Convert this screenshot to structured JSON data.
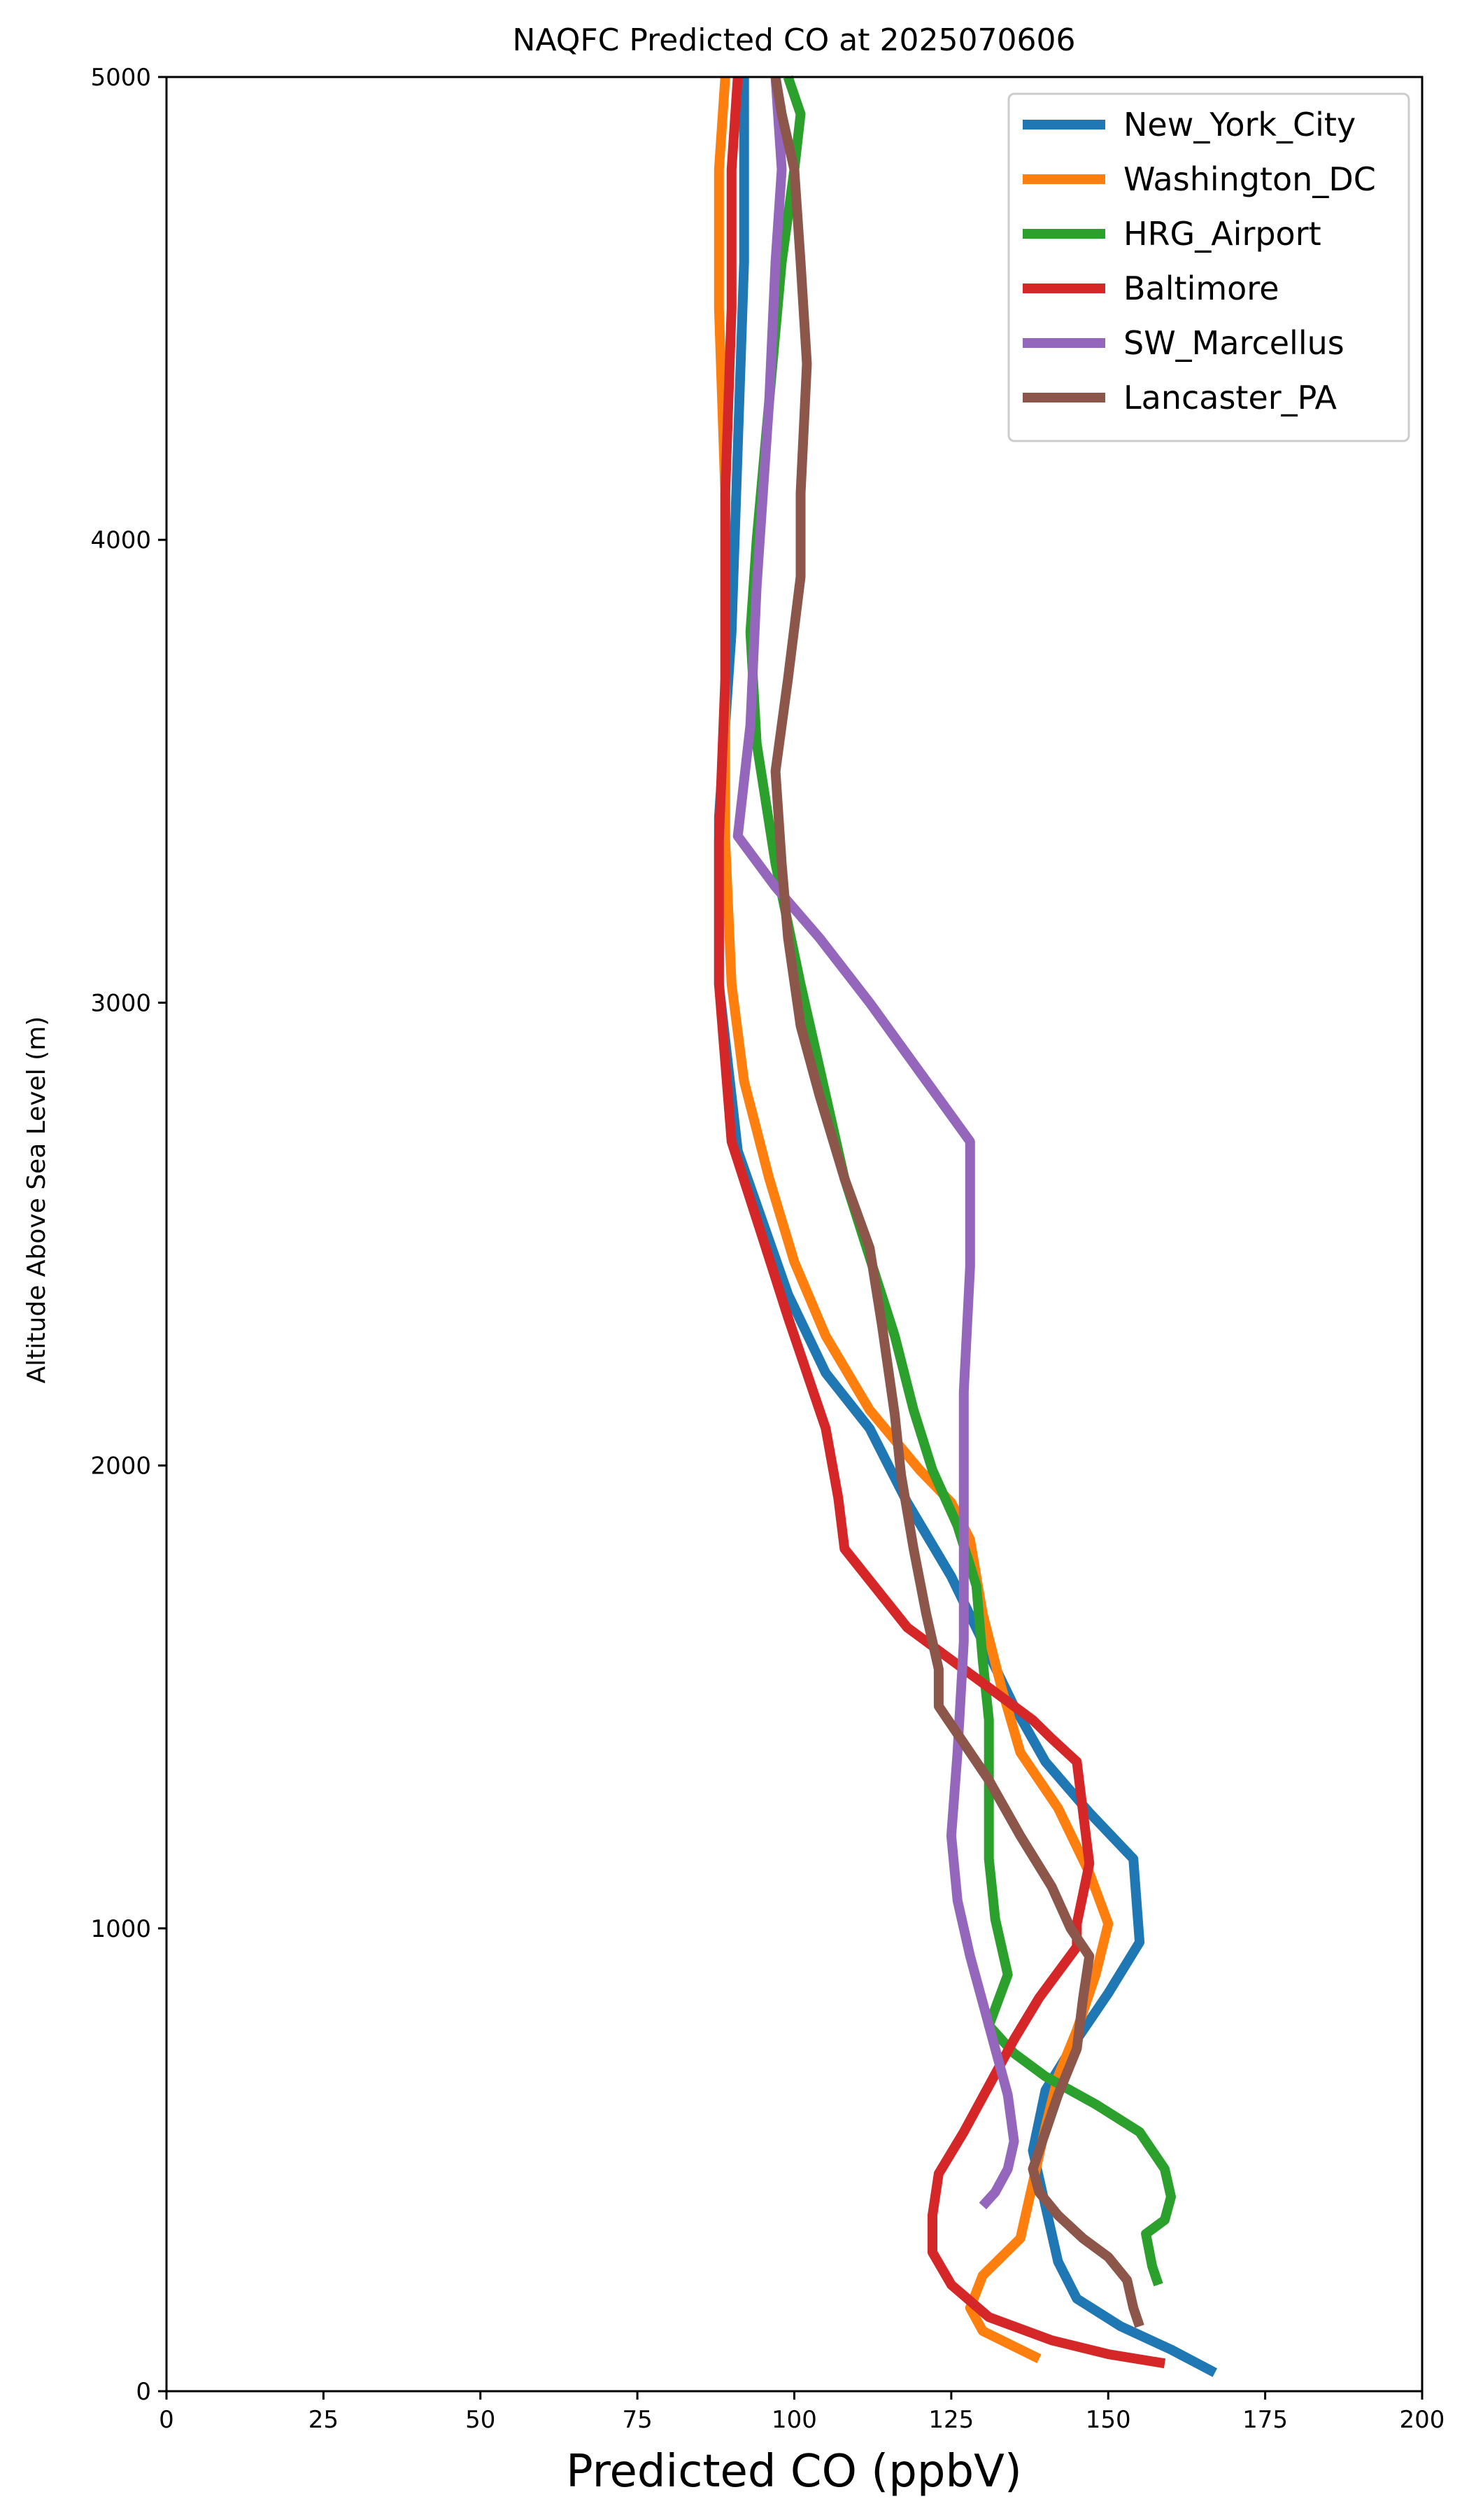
{
  "chart_data": {
    "type": "line",
    "title": "NAQFC Predicted CO at 2025070606",
    "xlabel": "Predicted CO (ppbV)",
    "ylabel": "Altitude Above Sea Level (m)",
    "xlim": [
      0,
      200
    ],
    "ylim": [
      0,
      5000
    ],
    "x_ticks": [
      0,
      25,
      50,
      75,
      100,
      125,
      150,
      175,
      200
    ],
    "y_ticks": [
      0,
      1000,
      2000,
      3000,
      4000,
      5000
    ],
    "grid": false,
    "legend_position": "top-right",
    "series": [
      {
        "name": "New_York_City",
        "color": "#1f77b4",
        "points": [
          [
            167,
            40
          ],
          [
            160,
            90
          ],
          [
            152,
            140
          ],
          [
            145,
            200
          ],
          [
            142,
            280
          ],
          [
            140,
            400
          ],
          [
            138,
            520
          ],
          [
            140,
            650
          ],
          [
            145,
            760
          ],
          [
            150,
            860
          ],
          [
            155,
            970
          ],
          [
            154,
            1150
          ],
          [
            147,
            1250
          ],
          [
            140,
            1360
          ],
          [
            135,
            1480
          ],
          [
            130,
            1620
          ],
          [
            125,
            1760
          ],
          [
            118,
            1920
          ],
          [
            112,
            2080
          ],
          [
            105,
            2200
          ],
          [
            99,
            2370
          ],
          [
            91,
            2680
          ],
          [
            88,
            3040
          ],
          [
            88,
            3400
          ],
          [
            90,
            3800
          ],
          [
            91,
            4200
          ],
          [
            92,
            4600
          ],
          [
            92,
            5000
          ]
        ]
      },
      {
        "name": "Washington_DC",
        "color": "#ff7f0e",
        "points": [
          [
            139,
            70
          ],
          [
            130,
            130
          ],
          [
            128,
            180
          ],
          [
            130,
            250
          ],
          [
            136,
            330
          ],
          [
            138,
            450
          ],
          [
            140,
            570
          ],
          [
            142,
            680
          ],
          [
            145,
            780
          ],
          [
            148,
            900
          ],
          [
            150,
            1010
          ],
          [
            147,
            1120
          ],
          [
            142,
            1260
          ],
          [
            136,
            1380
          ],
          [
            133,
            1520
          ],
          [
            130,
            1680
          ],
          [
            128,
            1840
          ],
          [
            125,
            1920
          ],
          [
            120,
            1990
          ],
          [
            112,
            2120
          ],
          [
            105,
            2280
          ],
          [
            100,
            2440
          ],
          [
            96,
            2620
          ],
          [
            92,
            2830
          ],
          [
            90,
            3040
          ],
          [
            89,
            3350
          ],
          [
            89,
            3700
          ],
          [
            89,
            4100
          ],
          [
            88,
            4500
          ],
          [
            88,
            4800
          ],
          [
            89,
            5000
          ]
        ]
      },
      {
        "name": "HRG_Airport",
        "color": "#2ca02c",
        "points": [
          [
            158,
            230
          ],
          [
            157,
            270
          ],
          [
            156,
            340
          ],
          [
            159,
            370
          ],
          [
            160,
            420
          ],
          [
            159,
            480
          ],
          [
            155,
            560
          ],
          [
            148,
            620
          ],
          [
            140,
            680
          ],
          [
            135,
            730
          ],
          [
            131,
            790
          ],
          [
            134,
            900
          ],
          [
            132,
            1020
          ],
          [
            131,
            1150
          ],
          [
            131,
            1300
          ],
          [
            131,
            1450
          ],
          [
            130,
            1580
          ],
          [
            129,
            1740
          ],
          [
            126,
            1870
          ],
          [
            122,
            1990
          ],
          [
            119,
            2120
          ],
          [
            116,
            2280
          ],
          [
            112,
            2450
          ],
          [
            108,
            2620
          ],
          [
            105,
            2800
          ],
          [
            101,
            3040
          ],
          [
            97,
            3300
          ],
          [
            94,
            3560
          ],
          [
            93,
            3800
          ],
          [
            94,
            4000
          ],
          [
            96,
            4300
          ],
          [
            98,
            4600
          ],
          [
            100,
            4800
          ],
          [
            101,
            4920
          ],
          [
            99,
            5000
          ]
        ]
      },
      {
        "name": "Baltimore",
        "color": "#d62728",
        "points": [
          [
            159,
            60
          ],
          [
            150,
            80
          ],
          [
            141,
            110
          ],
          [
            131,
            160
          ],
          [
            125,
            230
          ],
          [
            122,
            300
          ],
          [
            122,
            380
          ],
          [
            123,
            470
          ],
          [
            127,
            560
          ],
          [
            131,
            660
          ],
          [
            135,
            760
          ],
          [
            139,
            850
          ],
          [
            145,
            960
          ],
          [
            145,
            1010
          ],
          [
            147,
            1140
          ],
          [
            146,
            1250
          ],
          [
            145,
            1360
          ],
          [
            141,
            1410
          ],
          [
            138,
            1450
          ],
          [
            134,
            1490
          ],
          [
            128,
            1550
          ],
          [
            118,
            1650
          ],
          [
            108,
            1820
          ],
          [
            107,
            1930
          ],
          [
            105,
            2080
          ],
          [
            99,
            2320
          ],
          [
            95,
            2490
          ],
          [
            90,
            2700
          ],
          [
            88,
            3040
          ],
          [
            88,
            3350
          ],
          [
            89,
            3700
          ],
          [
            89,
            4100
          ],
          [
            90,
            4500
          ],
          [
            90,
            4800
          ],
          [
            91,
            5000
          ]
        ]
      },
      {
        "name": "SW_Marcellus",
        "color": "#9467bd",
        "points": [
          [
            130,
            400
          ],
          [
            132,
            430
          ],
          [
            134,
            480
          ],
          [
            135,
            540
          ],
          [
            134,
            640
          ],
          [
            132,
            740
          ],
          [
            130,
            840
          ],
          [
            128,
            940
          ],
          [
            126,
            1060
          ],
          [
            125,
            1200
          ],
          [
            126,
            1380
          ],
          [
            127,
            1620
          ],
          [
            127,
            1900
          ],
          [
            127,
            2160
          ],
          [
            128,
            2430
          ],
          [
            128,
            2700
          ],
          [
            120,
            2850
          ],
          [
            112,
            3000
          ],
          [
            104,
            3140
          ],
          [
            97,
            3250
          ],
          [
            91,
            3360
          ],
          [
            93,
            3600
          ],
          [
            94,
            3900
          ],
          [
            95,
            4100
          ],
          [
            96,
            4300
          ],
          [
            97,
            4600
          ],
          [
            98,
            4800
          ],
          [
            97,
            5000
          ]
        ]
      },
      {
        "name": "Lancaster_PA",
        "color": "#8c564b",
        "points": [
          [
            155,
            140
          ],
          [
            154,
            180
          ],
          [
            153,
            240
          ],
          [
            150,
            290
          ],
          [
            146,
            330
          ],
          [
            142,
            380
          ],
          [
            139,
            430
          ],
          [
            138,
            480
          ],
          [
            140,
            560
          ],
          [
            142,
            640
          ],
          [
            145,
            740
          ],
          [
            146,
            850
          ],
          [
            147,
            940
          ],
          [
            144,
            1000
          ],
          [
            141,
            1090
          ],
          [
            136,
            1200
          ],
          [
            131,
            1320
          ],
          [
            126,
            1420
          ],
          [
            123,
            1480
          ],
          [
            123,
            1560
          ],
          [
            121,
            1680
          ],
          [
            119,
            1820
          ],
          [
            117,
            1980
          ],
          [
            116,
            2110
          ],
          [
            114,
            2300
          ],
          [
            112,
            2470
          ],
          [
            108,
            2620
          ],
          [
            104,
            2800
          ],
          [
            101,
            2950
          ],
          [
            99,
            3140
          ],
          [
            98,
            3300
          ],
          [
            97,
            3500
          ],
          [
            99,
            3700
          ],
          [
            101,
            3920
          ],
          [
            101,
            4100
          ],
          [
            102,
            4380
          ],
          [
            101,
            4600
          ],
          [
            100,
            4800
          ],
          [
            98,
            4920
          ],
          [
            97,
            5000
          ]
        ]
      }
    ]
  }
}
